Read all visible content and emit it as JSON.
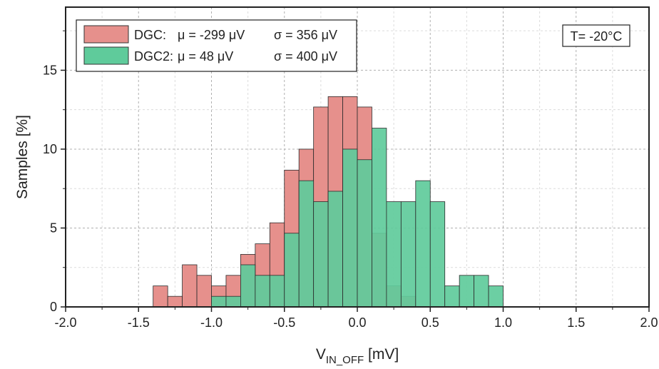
{
  "chart_data": {
    "type": "histogram",
    "bin_width": 0.1,
    "xlim": [
      -2.0,
      2.0
    ],
    "ylim": [
      0,
      19
    ],
    "x_ticks": [
      "-2.0",
      "-1.5",
      "-1.0",
      "-0.5",
      "0.0",
      "0.5",
      "1.0",
      "1.5",
      "2.0"
    ],
    "x_tick_values": [
      -2.0,
      -1.5,
      -1.0,
      -0.5,
      0.0,
      0.5,
      1.0,
      1.5,
      2.0
    ],
    "y_ticks": [
      "0",
      "5",
      "10",
      "15"
    ],
    "y_tick_values": [
      0,
      5,
      10,
      15
    ],
    "ylabel": "Samples [%]",
    "xlabel_main": "V",
    "xlabel_sub": "IN_OFF",
    "xlabel_unit": " [mV]",
    "grid": true,
    "legend_position": "top-left",
    "annotation": "T= -20°C",
    "series": [
      {
        "name": "DGC:",
        "mu_label": "μ = -299 μV",
        "sigma_label": "σ = 356 μV",
        "color": "#e6908c",
        "bins": [
          {
            "x": -1.35,
            "y": 1.33
          },
          {
            "x": -1.25,
            "y": 0.67
          },
          {
            "x": -1.15,
            "y": 2.67
          },
          {
            "x": -1.05,
            "y": 2.0
          },
          {
            "x": -0.95,
            "y": 1.33
          },
          {
            "x": -0.85,
            "y": 2.0
          },
          {
            "x": -0.75,
            "y": 3.33
          },
          {
            "x": -0.65,
            "y": 4.0
          },
          {
            "x": -0.55,
            "y": 5.33
          },
          {
            "x": -0.45,
            "y": 8.67
          },
          {
            "x": -0.35,
            "y": 10.0
          },
          {
            "x": -0.25,
            "y": 12.67
          },
          {
            "x": -0.15,
            "y": 13.33
          },
          {
            "x": -0.05,
            "y": 13.33
          },
          {
            "x": 0.05,
            "y": 12.67
          },
          {
            "x": 0.15,
            "y": 4.67
          },
          {
            "x": 0.25,
            "y": 1.33
          },
          {
            "x": 0.35,
            "y": 0.67
          }
        ]
      },
      {
        "name": "DGC2:",
        "mu_label": "μ = 48 μV",
        "sigma_label": "σ = 400 μV",
        "color": "#5fcb9b",
        "bins": [
          {
            "x": -0.95,
            "y": 0.67
          },
          {
            "x": -0.85,
            "y": 0.67
          },
          {
            "x": -0.75,
            "y": 2.67
          },
          {
            "x": -0.65,
            "y": 2.0
          },
          {
            "x": -0.55,
            "y": 2.0
          },
          {
            "x": -0.45,
            "y": 4.67
          },
          {
            "x": -0.35,
            "y": 8.0
          },
          {
            "x": -0.25,
            "y": 6.67
          },
          {
            "x": -0.15,
            "y": 7.33
          },
          {
            "x": -0.05,
            "y": 10.0
          },
          {
            "x": 0.05,
            "y": 9.33
          },
          {
            "x": 0.15,
            "y": 11.33
          },
          {
            "x": 0.25,
            "y": 6.67
          },
          {
            "x": 0.35,
            "y": 6.67
          },
          {
            "x": 0.45,
            "y": 8.0
          },
          {
            "x": 0.55,
            "y": 6.67
          },
          {
            "x": 0.65,
            "y": 1.33
          },
          {
            "x": 0.75,
            "y": 2.0
          },
          {
            "x": 0.85,
            "y": 2.0
          },
          {
            "x": 0.95,
            "y": 1.33
          }
        ]
      }
    ]
  }
}
